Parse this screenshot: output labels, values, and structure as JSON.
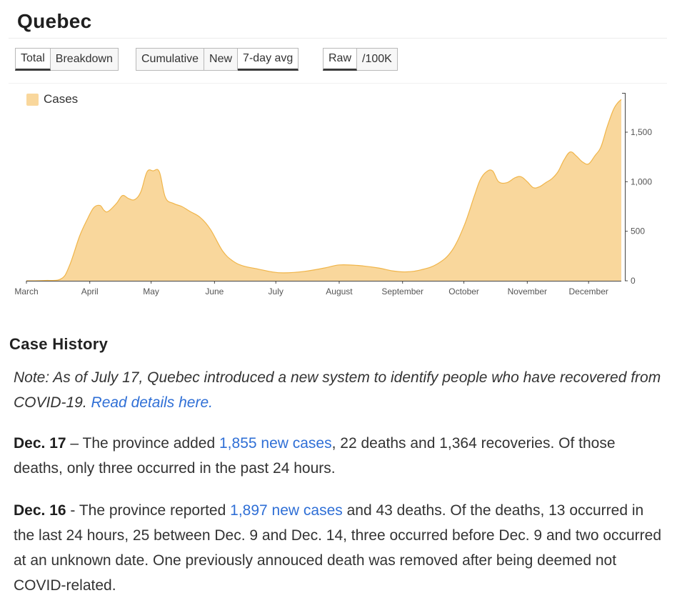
{
  "page": {
    "title": "Quebec"
  },
  "controls": {
    "group1": [
      {
        "label": "Total",
        "active": true
      },
      {
        "label": "Breakdown",
        "active": false
      }
    ],
    "group2": [
      {
        "label": "Cumulative",
        "active": false
      },
      {
        "label": "New",
        "active": false
      },
      {
        "label": "7-day avg",
        "active": true
      }
    ],
    "group3": [
      {
        "label": "Raw",
        "active": true
      },
      {
        "label": "/100K",
        "active": false
      }
    ]
  },
  "colors": {
    "area_fill": "#f9d79c",
    "area_stroke": "#f0b54a",
    "link": "#2f6fd6"
  },
  "chart_data": {
    "type": "area",
    "legend": {
      "label": "Cases",
      "position": "top-left"
    },
    "x_ticks": [
      "March",
      "April",
      "May",
      "June",
      "July",
      "August",
      "September",
      "October",
      "November",
      "December"
    ],
    "y_ticks": [
      "0",
      "500",
      "1,000",
      "1,500"
    ],
    "y_tick_values": [
      0,
      500,
      1000,
      1500
    ],
    "ylim": [
      0,
      1900
    ],
    "y_axis_position": "right",
    "grid": false,
    "series": [
      {
        "values": [
          {
            "x": "Mar 1",
            "y": 0
          },
          {
            "x": "Mar 10",
            "y": 3
          },
          {
            "x": "Mar 18",
            "y": 20
          },
          {
            "x": "Mar 22",
            "y": 150
          },
          {
            "x": "Mar 27",
            "y": 450
          },
          {
            "x": "Mar 31",
            "y": 630
          },
          {
            "x": "Apr 3",
            "y": 740
          },
          {
            "x": "Apr 6",
            "y": 760
          },
          {
            "x": "Apr 8",
            "y": 710
          },
          {
            "x": "Apr 10",
            "y": 700
          },
          {
            "x": "Apr 14",
            "y": 780
          },
          {
            "x": "Apr 17",
            "y": 860
          },
          {
            "x": "Apr 20",
            "y": 830
          },
          {
            "x": "Apr 23",
            "y": 820
          },
          {
            "x": "Apr 26",
            "y": 900
          },
          {
            "x": "Apr 29",
            "y": 1100
          },
          {
            "x": "May 2",
            "y": 1110
          },
          {
            "x": "May 5",
            "y": 1100
          },
          {
            "x": "May 8",
            "y": 840
          },
          {
            "x": "May 12",
            "y": 780
          },
          {
            "x": "May 16",
            "y": 750
          },
          {
            "x": "May 20",
            "y": 700
          },
          {
            "x": "May 25",
            "y": 640
          },
          {
            "x": "May 30",
            "y": 520
          },
          {
            "x": "Jun 5",
            "y": 300
          },
          {
            "x": "Jun 10",
            "y": 200
          },
          {
            "x": "Jun 15",
            "y": 150
          },
          {
            "x": "Jun 22",
            "y": 120
          },
          {
            "x": "Jun 29",
            "y": 90
          },
          {
            "x": "Jul 5",
            "y": 80
          },
          {
            "x": "Jul 15",
            "y": 95
          },
          {
            "x": "Jul 25",
            "y": 130
          },
          {
            "x": "Aug 1",
            "y": 160
          },
          {
            "x": "Aug 10",
            "y": 155
          },
          {
            "x": "Aug 20",
            "y": 130
          },
          {
            "x": "Aug 27",
            "y": 100
          },
          {
            "x": "Sep 3",
            "y": 90
          },
          {
            "x": "Sep 10",
            "y": 110
          },
          {
            "x": "Sep 18",
            "y": 170
          },
          {
            "x": "Sep 25",
            "y": 300
          },
          {
            "x": "Oct 1",
            "y": 550
          },
          {
            "x": "Oct 6",
            "y": 850
          },
          {
            "x": "Oct 9",
            "y": 1020
          },
          {
            "x": "Oct 12",
            "y": 1100
          },
          {
            "x": "Oct 15",
            "y": 1110
          },
          {
            "x": "Oct 18",
            "y": 1000
          },
          {
            "x": "Oct 22",
            "y": 990
          },
          {
            "x": "Oct 26",
            "y": 1040
          },
          {
            "x": "Oct 29",
            "y": 1050
          },
          {
            "x": "Nov 1",
            "y": 1000
          },
          {
            "x": "Nov 4",
            "y": 940
          },
          {
            "x": "Nov 7",
            "y": 950
          },
          {
            "x": "Nov 10",
            "y": 990
          },
          {
            "x": "Nov 13",
            "y": 1030
          },
          {
            "x": "Nov 16",
            "y": 1100
          },
          {
            "x": "Nov 19",
            "y": 1220
          },
          {
            "x": "Nov 22",
            "y": 1300
          },
          {
            "x": "Nov 25",
            "y": 1260
          },
          {
            "x": "Nov 28",
            "y": 1200
          },
          {
            "x": "Dec 1",
            "y": 1180
          },
          {
            "x": "Dec 4",
            "y": 1260
          },
          {
            "x": "Dec 7",
            "y": 1350
          },
          {
            "x": "Dec 10",
            "y": 1550
          },
          {
            "x": "Dec 13",
            "y": 1720
          },
          {
            "x": "Dec 15",
            "y": 1790
          },
          {
            "x": "Dec 17",
            "y": 1830
          }
        ]
      }
    ]
  },
  "history": {
    "title": "Case History",
    "note": {
      "text": "Note:  As of July 17, Quebec introduced a new system to identify people who have recovered from COVID-19. ",
      "link": "Read details here."
    },
    "entries": [
      {
        "date": "Dec. 17",
        "pre": " – The province added ",
        "link": "1,855 new cases",
        "post": ", 22 deaths and 1,364 recoveries. Of those deaths, only three occurred in the past 24 hours."
      },
      {
        "date": "Dec. 16",
        "pre": " - The province reported ",
        "link": "1,897 new cases",
        "post": " and 43 deaths. Of the deaths, 13 occurred in the last 24 hours, 25 between Dec. 9 and Dec. 14, three occurred before Dec. 9 and two occurred at an unknown date. One previously annouced death was removed after being deemed not COVID-related."
      }
    ]
  }
}
